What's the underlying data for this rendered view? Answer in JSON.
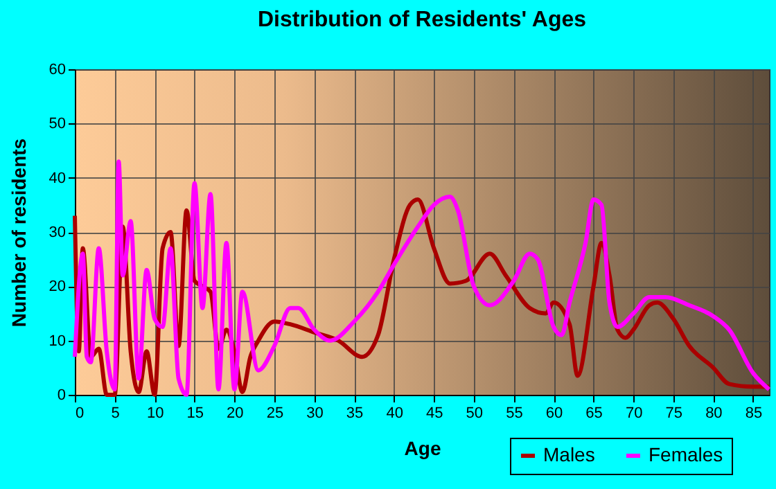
{
  "chart_data": {
    "type": "line",
    "title": "Distribution of Residents' Ages",
    "xlabel": "Age",
    "ylabel": "Number of residents",
    "xlim": [
      0,
      87
    ],
    "xticks": [
      0,
      5,
      10,
      15,
      20,
      25,
      30,
      35,
      40,
      45,
      50,
      55,
      60,
      65,
      70,
      75,
      80,
      85
    ],
    "ylim": [
      0,
      60
    ],
    "yticks": [
      0,
      10,
      20,
      30,
      40,
      50,
      60
    ],
    "grid": true,
    "legend": "bottom right",
    "marker": "none",
    "line_style": "solid",
    "series": [
      {
        "name": "Males",
        "color": "#aa0000",
        "x": [
          0,
          0.5,
          1,
          2,
          3,
          4,
          5,
          6,
          7,
          8,
          9,
          10,
          11,
          12,
          13,
          14,
          15,
          16,
          17,
          18,
          19,
          20,
          21,
          22,
          23,
          25,
          27,
          30,
          33,
          36,
          38,
          40,
          42,
          43,
          45,
          47,
          49,
          52,
          54,
          57,
          59,
          60,
          62,
          63,
          65,
          66,
          67,
          68,
          69,
          70,
          72,
          73,
          75,
          77,
          80,
          82,
          85,
          87
        ],
        "values": [
          33,
          8,
          27,
          7,
          8.5,
          0,
          0,
          31,
          8,
          0.5,
          8,
          0,
          27,
          30,
          9,
          34,
          21,
          20,
          19,
          8.5,
          12,
          8,
          0.5,
          7,
          10,
          13.5,
          13,
          11.5,
          10,
          7,
          11,
          25,
          35,
          36,
          27,
          20.5,
          21,
          26,
          22,
          16,
          15,
          17,
          13,
          3.5,
          20,
          28,
          22,
          12,
          10.5,
          12,
          16.5,
          17,
          14,
          9,
          5,
          2,
          1.5,
          1.5
        ]
      },
      {
        "name": "Females",
        "color": "#ff00ff",
        "x": [
          0,
          1,
          1.5,
          2,
          3,
          4,
          5,
          5.5,
          6,
          7,
          8,
          9,
          10,
          11,
          12,
          13,
          14,
          15,
          16,
          17,
          18,
          19,
          20,
          21,
          23,
          25,
          27,
          28,
          30,
          32,
          35,
          38,
          40,
          43,
          45,
          47,
          48,
          50,
          52,
          55,
          57,
          58,
          60,
          61,
          62,
          64,
          65,
          66,
          67,
          68,
          70,
          72,
          74,
          77,
          80,
          82,
          85,
          87
        ],
        "values": [
          7,
          26,
          7,
          6,
          27,
          8,
          1,
          43,
          22,
          32,
          3,
          23,
          14,
          12.5,
          27,
          3,
          0,
          39,
          16,
          37,
          1,
          28,
          1,
          19,
          4.5,
          9,
          16,
          16,
          12,
          10,
          13.5,
          19,
          24,
          31,
          35,
          36.5,
          34,
          20,
          16.5,
          21,
          26,
          25,
          12.5,
          11,
          17,
          28,
          36,
          35,
          17,
          12.5,
          15,
          18,
          18,
          16.5,
          14.5,
          12,
          4,
          1
        ]
      }
    ]
  }
}
